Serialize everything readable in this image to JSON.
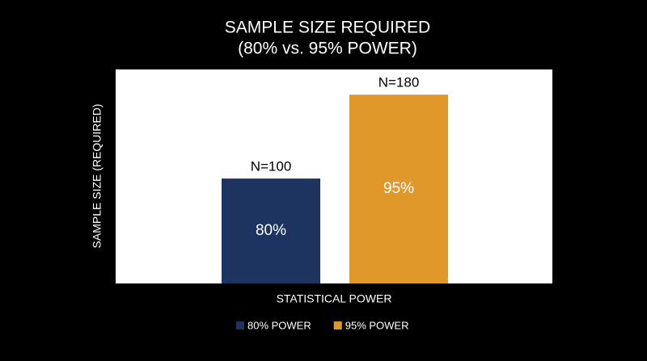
{
  "chart_data": {
    "type": "bar",
    "title": "SAMPLE SIZE REQUIRED",
    "subtitle": "(80% vs. 95% POWER)",
    "x_label": "STATISTICAL POWER",
    "y_label": "SAMPLE SIZE (REQUIRED)",
    "categories": [
      null,
      null
    ],
    "series": [
      {
        "name": "80% POWER",
        "color": "#1d3461",
        "values": [
          100,
          null
        ],
        "value_labels": [
          "N=100",
          null
        ],
        "inner_labels": [
          "80%",
          null
        ]
      },
      {
        "name": "95% POWER",
        "color": "#e0982a",
        "values": [
          null,
          180
        ],
        "value_labels": [
          null,
          "N=180"
        ],
        "inner_labels": [
          null,
          "95%"
        ]
      }
    ],
    "ylim": [
      0,
      204
    ],
    "grid": false,
    "legend": "bottom"
  }
}
